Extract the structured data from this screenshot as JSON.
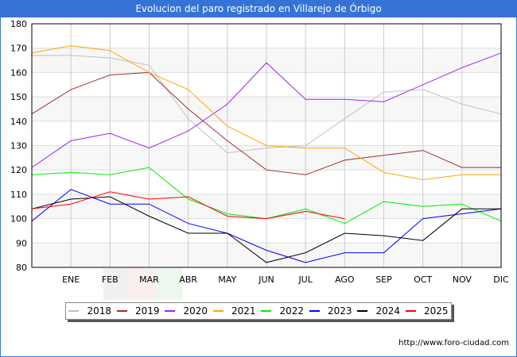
{
  "title": "Evolucion del paro registrado en Villarejo de Órbigo",
  "url": "http://www.foro-ciudad.com",
  "chart_data": {
    "type": "line",
    "title": "Evolucion del paro registrado en Villarejo de Órbigo",
    "xlabel": "",
    "ylabel": "",
    "categories": [
      "",
      "ENE",
      "FEB",
      "MAR",
      "ABR",
      "MAY",
      "JUN",
      "JUL",
      "AGO",
      "SEP",
      "OCT",
      "NOV",
      "DIC"
    ],
    "ylim": [
      80,
      180
    ],
    "yticks": [
      80,
      90,
      100,
      110,
      120,
      130,
      140,
      150,
      160,
      170,
      180
    ],
    "grid": true,
    "legend_position": "bottom",
    "series": [
      {
        "name": "2018",
        "color": "#c0c0c0",
        "values": [
          167,
          167,
          166,
          163,
          141,
          127,
          129,
          130,
          141,
          152,
          153,
          147,
          143
        ]
      },
      {
        "name": "2019",
        "color": "#a52a2a",
        "values": [
          143,
          153,
          159,
          160,
          145,
          132,
          120,
          118,
          124,
          126,
          128,
          121,
          121
        ]
      },
      {
        "name": "2020",
        "color": "#a020f0",
        "values": [
          121,
          132,
          135,
          129,
          136,
          147,
          164,
          149,
          149,
          148,
          155,
          162,
          168
        ]
      },
      {
        "name": "2021",
        "color": "#ffa500",
        "values": [
          168,
          171,
          169,
          160,
          153,
          138,
          130,
          129,
          129,
          119,
          116,
          118,
          118
        ]
      },
      {
        "name": "2022",
        "color": "#00ee00",
        "values": [
          118,
          119,
          118,
          121,
          108,
          102,
          100,
          104,
          98,
          107,
          105,
          106,
          99
        ]
      },
      {
        "name": "2023",
        "color": "#0000ff",
        "values": [
          99,
          112,
          106,
          106,
          98,
          94,
          87,
          82,
          86,
          86,
          100,
          102,
          104
        ]
      },
      {
        "name": "2024",
        "color": "#000000",
        "values": [
          104,
          108,
          109,
          101,
          94,
          94,
          82,
          86,
          94,
          93,
          91,
          104,
          104
        ]
      },
      {
        "name": "2025",
        "color": "#ff0000",
        "values": [
          104,
          106,
          111,
          108,
          109,
          101,
          100,
          103,
          100,
          null,
          null,
          null,
          null
        ]
      }
    ]
  }
}
